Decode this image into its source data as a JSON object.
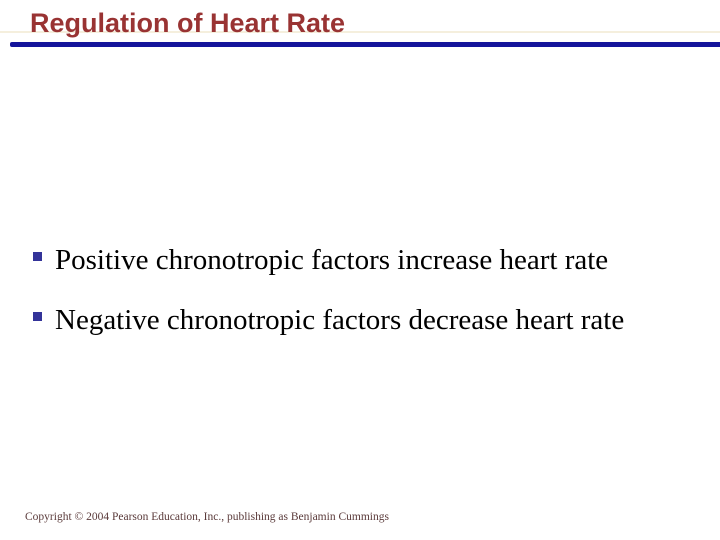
{
  "slide": {
    "title": "Regulation of Heart Rate",
    "bullets": [
      "Positive chronotropic factors increase heart rate",
      "Negative chronotropic factors decrease heart rate"
    ],
    "footer": "Copyright © 2004 Pearson Education, Inc., publishing as Benjamin Cummings",
    "colors": {
      "background": "#ffffff",
      "title_color": "#993333",
      "rule_color": "#14149b",
      "marker_color": "#333399",
      "body_color": "#000000",
      "footer_color": "#5a3a3a",
      "guide_color": "#f5efdd"
    }
  }
}
